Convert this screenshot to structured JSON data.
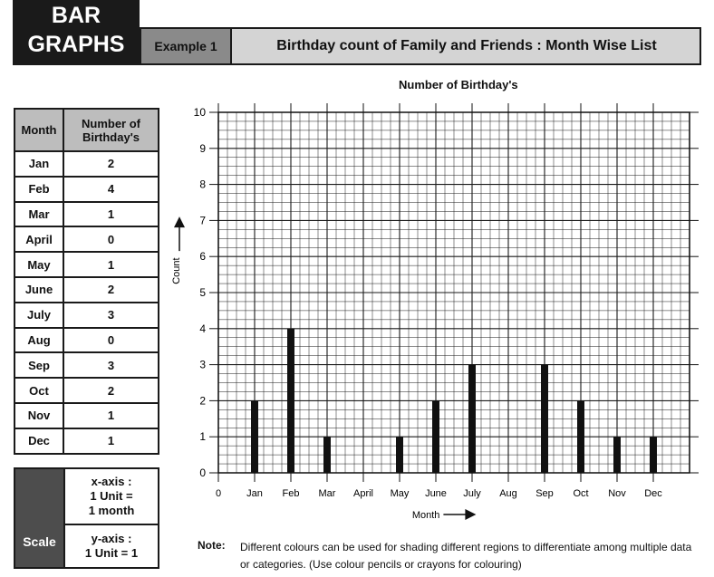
{
  "header": {
    "title_line1": "BAR",
    "title_line2": "GRAPHS",
    "example_label": "Example 1",
    "subtitle": "Birthday count of Family and Friends : Month Wise List"
  },
  "table": {
    "headers": [
      "Month",
      "Number of Birthday's"
    ],
    "rows": [
      [
        "Jan",
        "2"
      ],
      [
        "Feb",
        "4"
      ],
      [
        "Mar",
        "1"
      ],
      [
        "April",
        "0"
      ],
      [
        "May",
        "1"
      ],
      [
        "June",
        "2"
      ],
      [
        "July",
        "3"
      ],
      [
        "Aug",
        "0"
      ],
      [
        "Sep",
        "3"
      ],
      [
        "Oct",
        "2"
      ],
      [
        "Nov",
        "1"
      ],
      [
        "Dec",
        "1"
      ]
    ]
  },
  "scale": {
    "label": "Scale",
    "x_axis_line1": "x-axis :",
    "x_axis_line2": "1 Unit =",
    "x_axis_line3": "1 month",
    "y_axis_line1": "y-axis :",
    "y_axis_line2": "1 Unit = 1"
  },
  "note": {
    "label": "Note:",
    "text": "Different colours can be used for shading different regions to differentiate among multiple data or categories. (Use colour pencils or crayons for colouring)"
  },
  "chart_data": {
    "type": "bar",
    "title": "Number of Birthday's",
    "xlabel": "Month",
    "ylabel": "Count",
    "x_origin_label": "0",
    "categories": [
      "Jan",
      "Feb",
      "Mar",
      "April",
      "May",
      "June",
      "July",
      "Aug",
      "Sep",
      "Oct",
      "Nov",
      "Dec"
    ],
    "x_tick_labels": [
      "Jan",
      "Feb",
      "Mar",
      "April",
      "May",
      "June",
      "July",
      "Aug",
      "Sep",
      "Oct",
      "Nov",
      "Dec"
    ],
    "values": [
      2,
      4,
      1,
      0,
      1,
      2,
      3,
      0,
      3,
      2,
      1,
      1
    ],
    "ylim": [
      0,
      10
    ],
    "yticks": [
      0,
      1,
      2,
      3,
      4,
      5,
      6,
      7,
      8,
      9,
      10
    ],
    "grid": true,
    "bar_color": "#111111",
    "grid_color": "#1a1a1a"
  }
}
